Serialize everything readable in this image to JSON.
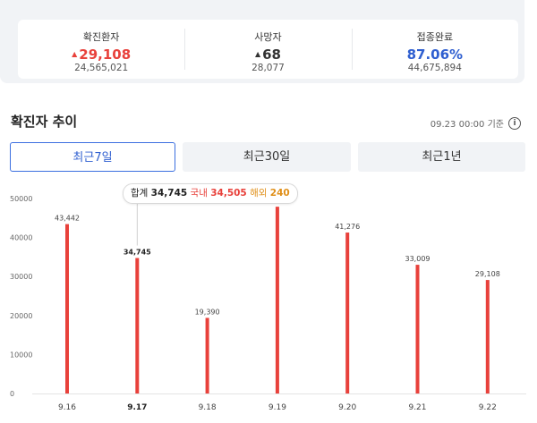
{
  "summary": {
    "confirmed": {
      "label": "확진환자",
      "delta": "29,108",
      "total": "24,565,021"
    },
    "deaths": {
      "label": "사망자",
      "delta": "68",
      "total": "28,077"
    },
    "vaccinated": {
      "label": "접종완료",
      "rate": "87.06%",
      "total": "44,675,894"
    }
  },
  "section": {
    "title": "확진자 추이",
    "basis": "09.23 00:00 기준",
    "info_icon": "i"
  },
  "tabs": [
    {
      "label": "최근7일",
      "active": true
    },
    {
      "label": "최근30일",
      "active": false
    },
    {
      "label": "최근1년",
      "active": false
    }
  ],
  "tooltip": {
    "total_label": "합계",
    "total_value": "34,745",
    "domestic_label": "국내",
    "domestic_value": "34,505",
    "overseas_label": "해외",
    "overseas_value": "240"
  },
  "colors": {
    "bar": "#e8413b",
    "accent_blue": "#2f5fd0",
    "overseas": "#e0901a"
  },
  "chart_data": {
    "type": "bar",
    "categories": [
      "9.16",
      "9.17",
      "9.18",
      "9.19",
      "9.20",
      "9.21",
      "9.22"
    ],
    "values": [
      43442,
      34745,
      19390,
      47901,
      41276,
      33009,
      29108
    ],
    "value_labels": [
      "43,442",
      "34,745",
      "19,390",
      "47,901",
      "41,276",
      "33,009",
      "29,108"
    ],
    "yticks": [
      0,
      10000,
      20000,
      30000,
      40000,
      50000
    ],
    "ylim": [
      0,
      50000
    ],
    "selected_index": 1,
    "grid": false
  }
}
